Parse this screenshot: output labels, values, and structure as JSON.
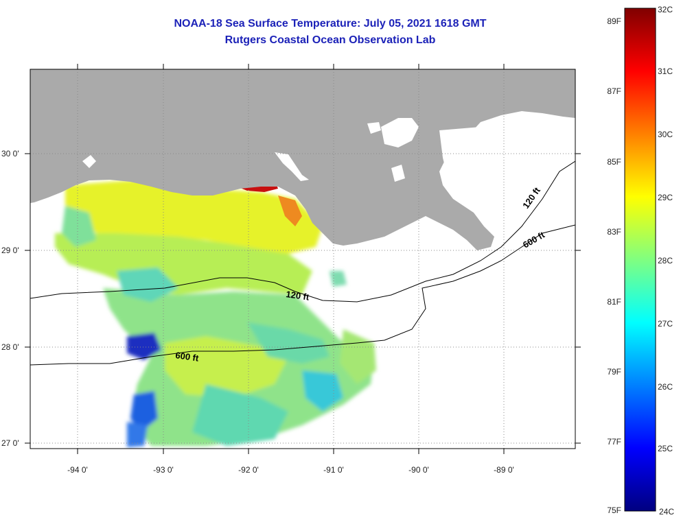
{
  "header": {
    "title": "NOAA-18 Sea Surface Temperature:  July 05, 2021 1618 GMT",
    "subtitle": "Rutgers Coastal Ocean Observation Lab"
  },
  "axes": {
    "lon_labels": [
      "-94 0'",
      "-93 0'",
      "-92 0'",
      "-91 0'",
      "-90 0'",
      "-89 0'"
    ],
    "lat_labels": [
      "30 0'",
      "29 0'",
      "28 0'",
      "27 0'"
    ]
  },
  "contours": {
    "label_120": "120 ft",
    "label_600": "600 ft"
  },
  "colorbar": {
    "fahrenheit": [
      "89F",
      "87F",
      "85F",
      "83F",
      "81F",
      "79F",
      "77F",
      "75F"
    ],
    "celsius": [
      "32C",
      "31C",
      "30C",
      "29C",
      "28C",
      "27C",
      "26C",
      "25C",
      "24C"
    ],
    "colors": [
      "#000080",
      "#0000ff",
      "#0080ff",
      "#00ffff",
      "#80ff80",
      "#ffff00",
      "#ff8000",
      "#ff0000",
      "#800000"
    ]
  },
  "map_colors": {
    "land": "#aaaaaa",
    "water_no_data": "#ffffff"
  }
}
